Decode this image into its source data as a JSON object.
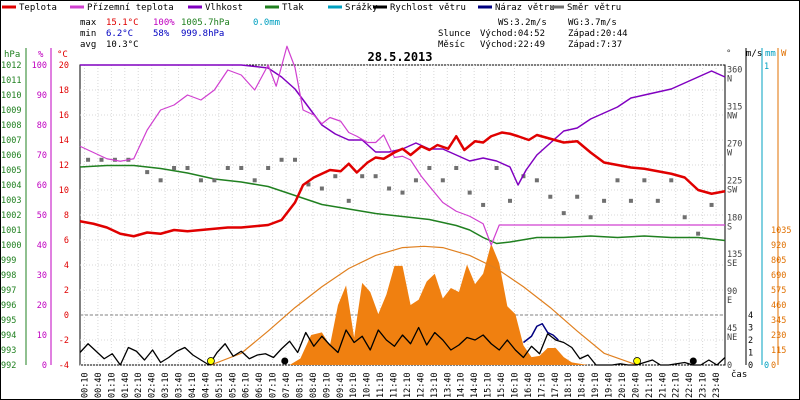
{
  "chart_data": {
    "type": "line",
    "title": "28.5.2013",
    "legend": [
      {
        "label": "Teplota",
        "color": "#e00000"
      },
      {
        "label": "Přízemní teplota",
        "color": "#d040d0"
      },
      {
        "label": "Vlhkost",
        "color": "#8000c0"
      },
      {
        "label": "Tlak",
        "color": "#208020"
      },
      {
        "label": "Srážky",
        "color": "#00a0c0"
      },
      {
        "label": "Rychlost větru",
        "color": "#000000"
      },
      {
        "label": "Náraz větru",
        "color": "#000080"
      },
      {
        "label": "Směr větru",
        "color": "#707070"
      }
    ],
    "stats": {
      "max": {
        "label": "max",
        "temp": "15.1°C",
        "humidity": "100%",
        "pressure": "1005.7hPa",
        "rain": "0.0mm"
      },
      "min": {
        "label": "min",
        "temp": "6.2°C",
        "humidity": "58%",
        "pressure": "999.8hPa"
      },
      "avg": {
        "label": "avg",
        "temp": "10.3°C"
      }
    },
    "wind_info": {
      "ws": "WS:3.2m/s",
      "wg": "WG:3.7m/s"
    },
    "sun": {
      "label": "Slunce",
      "rise": "Východ:04:52",
      "set": "Západ:20:44"
    },
    "moon": {
      "label": "Měsíc",
      "rise": "Východ:22:49",
      "set": "Západ:7:37"
    },
    "axis_units": {
      "pressure": "hPa",
      "humidity": "%",
      "temp": "°C",
      "direction": "°",
      "speed": "m/s",
      "rain": "mm",
      "radiation": "W",
      "time": "čas"
    },
    "pressure_ticks": [
      "992",
      "993",
      "994",
      "995",
      "996",
      "997",
      "998",
      "999",
      "1000",
      "1001",
      "1002",
      "1003",
      "1004",
      "1005",
      "1006",
      "1007",
      "1008",
      "1009",
      "1010",
      "1011",
      "1012"
    ],
    "humidity_ticks": [
      "0",
      "10",
      "20",
      "30",
      "40",
      "50",
      "60",
      "70",
      "80",
      "90",
      "100"
    ],
    "temp_ticks": [
      "-4",
      "-2",
      "0",
      "2",
      "4",
      "6",
      "8",
      "10",
      "12",
      "14",
      "16",
      "18",
      "20"
    ],
    "direction_ticks": [
      {
        "deg": "360",
        "dir": "N",
        "v": 360
      },
      {
        "deg": "315",
        "dir": "NW",
        "v": 315
      },
      {
        "deg": "270",
        "dir": "W",
        "v": 270
      },
      {
        "deg": "225",
        "dir": "SW",
        "v": 225
      },
      {
        "deg": "180",
        "dir": "S",
        "v": 180
      },
      {
        "deg": "135",
        "dir": "SE",
        "v": 135
      },
      {
        "deg": "90",
        "dir": "E",
        "v": 90
      },
      {
        "deg": "45",
        "dir": "NE",
        "v": 45
      },
      {
        "deg": "0",
        "dir": "",
        "v": 0
      }
    ],
    "speed_ticks": [
      "0",
      "1",
      "2",
      "3",
      "4"
    ],
    "rain_ticks": [
      "0",
      "1"
    ],
    "radiation_ticks": [
      "0",
      "115",
      "230",
      "345",
      "460",
      "575",
      "690",
      "805",
      "920",
      "1035"
    ],
    "time_ticks": [
      "00:10",
      "00:40",
      "01:10",
      "01:40",
      "02:10",
      "02:40",
      "03:10",
      "03:40",
      "04:10",
      "04:40",
      "05:10",
      "05:40",
      "06:10",
      "06:40",
      "07:10",
      "07:40",
      "08:10",
      "08:40",
      "09:10",
      "09:40",
      "10:10",
      "10:40",
      "11:10",
      "11:40",
      "12:10",
      "12:40",
      "13:10",
      "13:40",
      "14:10",
      "14:40",
      "15:10",
      "15:40",
      "16:10",
      "16:40",
      "17:10",
      "17:40",
      "18:10",
      "18:40",
      "19:10",
      "19:40",
      "20:10",
      "20:40",
      "21:10",
      "21:40",
      "22:10",
      "22:40",
      "23:10",
      "23:40"
    ],
    "ylim_temp": [
      -4,
      20
    ],
    "ylim_pressure": [
      992,
      1012
    ],
    "ylim_humidity": [
      0,
      100
    ],
    "ylim_speed": [
      0,
      4
    ],
    "ylim_radiation": [
      0,
      1150
    ],
    "xlim_hours": [
      0,
      24
    ],
    "series": {
      "temperature": {
        "x": [
          0,
          0.5,
          1,
          1.5,
          2,
          2.5,
          3,
          3.5,
          4,
          4.5,
          5,
          5.5,
          6,
          6.5,
          7,
          7.5,
          8,
          8.3,
          8.7,
          9,
          9.3,
          9.7,
          10,
          10.3,
          10.7,
          11,
          11.3,
          11.7,
          12,
          12.3,
          12.7,
          13,
          13.3,
          13.7,
          14,
          14.3,
          14.7,
          15,
          15.3,
          15.7,
          16,
          16.3,
          16.7,
          17,
          17.5,
          18,
          18.5,
          19,
          19.5,
          20,
          20.5,
          21,
          21.5,
          22,
          22.5,
          23,
          23.5,
          24
        ],
        "y": [
          7.5,
          7.3,
          7.0,
          6.5,
          6.3,
          6.6,
          6.5,
          6.8,
          6.7,
          6.8,
          6.9,
          7.0,
          7.0,
          7.1,
          7.2,
          7.6,
          9.0,
          10.4,
          11.0,
          11.3,
          11.6,
          11.5,
          12.1,
          11.4,
          12.2,
          12.6,
          12.5,
          13.0,
          13.3,
          12.8,
          13.5,
          13.2,
          13.6,
          13.3,
          14.3,
          13.2,
          13.9,
          13.8,
          14.3,
          14.6,
          14.5,
          14.3,
          14.0,
          14.4,
          14.1,
          13.8,
          13.9,
          13.0,
          12.2,
          12.0,
          11.8,
          11.7,
          11.5,
          11.3,
          11.0,
          10.0,
          9.7,
          9.9
        ]
      },
      "ground_temperature": {
        "x": [
          0,
          0.5,
          1,
          1.5,
          2,
          2.5,
          3,
          3.5,
          4,
          4.5,
          5,
          5.5,
          6,
          6.5,
          7,
          7.3,
          7.7,
          8,
          8.3,
          8.7,
          9,
          9.3,
          9.7,
          10,
          10.3,
          10.7,
          11,
          11.3,
          11.7,
          12,
          12.3,
          12.7,
          13,
          13.5,
          14,
          14.5,
          15,
          15.3,
          15.6,
          24
        ],
        "y": [
          13.5,
          13.0,
          12.5,
          12.3,
          12.5,
          14.8,
          16.4,
          16.8,
          17.6,
          17.2,
          18.0,
          19.6,
          19.2,
          18.0,
          20.0,
          18.3,
          21.5,
          19.8,
          16.4,
          16.0,
          15.3,
          15.8,
          15.5,
          14.6,
          14.3,
          13.8,
          13.8,
          14.4,
          12.6,
          12.7,
          12.4,
          11.1,
          10.3,
          9.0,
          8.3,
          7.9,
          7.3,
          5.6,
          7.2,
          7.2
        ]
      },
      "humidity": {
        "x": [
          0,
          6,
          7,
          7.5,
          8,
          8.5,
          9,
          9.5,
          10,
          10.5,
          11,
          11.5,
          12,
          12.5,
          13,
          13.5,
          14,
          14.5,
          15,
          15.5,
          16,
          16.3,
          16.6,
          17,
          17.5,
          18,
          18.5,
          19,
          19.5,
          20,
          20.5,
          21,
          21.5,
          22,
          22.5,
          23,
          23.5,
          24
        ],
        "y": [
          100,
          100,
          99,
          96,
          92,
          86,
          80,
          77,
          75,
          75,
          71,
          71,
          72,
          74,
          72,
          72,
          70,
          68,
          69,
          68,
          66,
          60,
          65,
          70,
          74,
          78,
          79,
          82,
          84,
          86,
          89,
          90,
          91,
          92,
          94,
          96,
          98,
          96
        ]
      },
      "pressure": {
        "x": [
          0,
          1,
          2,
          3,
          4,
          5,
          6,
          7,
          8,
          9,
          10,
          11,
          12,
          13,
          14,
          14.5,
          15,
          15.5,
          16,
          17,
          18,
          19,
          20,
          21,
          22,
          23,
          24
        ],
        "y": [
          1005.2,
          1005.3,
          1005.3,
          1005.1,
          1004.8,
          1004.4,
          1004.2,
          1003.9,
          1003.3,
          1002.7,
          1002.4,
          1002.1,
          1001.9,
          1001.7,
          1001.3,
          1001.0,
          1000.5,
          1000.1,
          1000.2,
          1000.5,
          1000.5,
          1000.6,
          1000.5,
          1000.6,
          1000.5,
          1000.5,
          1000.3
        ]
      },
      "wind_speed": {
        "x": [
          0,
          0.3,
          0.6,
          0.9,
          1.2,
          1.5,
          1.8,
          2.1,
          2.4,
          2.7,
          3.0,
          3.3,
          3.6,
          3.9,
          4.2,
          4.5,
          4.8,
          5.1,
          5.4,
          5.7,
          6.0,
          6.3,
          6.6,
          6.9,
          7.2,
          7.5,
          7.8,
          8.1,
          8.4,
          8.7,
          9.0,
          9.3,
          9.6,
          9.9,
          10.2,
          10.5,
          10.8,
          11.1,
          11.4,
          11.7,
          12.0,
          12.3,
          12.6,
          12.9,
          13.2,
          13.5,
          13.8,
          14.1,
          14.4,
          14.7,
          15.0,
          15.3,
          15.6,
          15.9,
          16.2,
          16.5,
          16.8,
          17.1,
          17.4,
          17.7,
          18.0,
          18.3,
          18.6,
          18.9,
          19.2,
          19.5,
          19.8,
          20.1,
          20.4,
          20.7,
          21.0,
          21.3,
          21.6,
          21.9,
          22.2,
          22.5,
          22.8,
          23.1,
          23.4,
          23.7,
          24
        ],
        "y": [
          1.0,
          1.7,
          1.1,
          0.5,
          0.9,
          0.0,
          1.4,
          1.1,
          0.4,
          1.2,
          0.2,
          0.6,
          1.1,
          1.4,
          0.8,
          0.4,
          0.0,
          1.0,
          1.7,
          0.7,
          1.1,
          0.5,
          0.8,
          0.9,
          0.6,
          1.3,
          1.9,
          1.0,
          2.6,
          1.5,
          2.3,
          1.6,
          1.0,
          2.8,
          1.8,
          2.3,
          1.2,
          2.8,
          2.0,
          1.5,
          2.4,
          1.7,
          3.0,
          1.6,
          2.6,
          2.0,
          1.2,
          1.6,
          2.2,
          2.0,
          2.4,
          1.7,
          1.2,
          2.0,
          1.2,
          0.6,
          1.5,
          0.9,
          2.5,
          2.0,
          1.8,
          1.4,
          0.5,
          0.8,
          0.0,
          0.0,
          0.0,
          0.1,
          0.0,
          0.0,
          0.2,
          0.4,
          0.0,
          0.0,
          0.1,
          0.2,
          0.0,
          0.0,
          0.4,
          0.0,
          0.6
        ]
      },
      "wind_gust": {
        "x": [
          16.5,
          16.8,
          17.0,
          17.2,
          17.4,
          17.6,
          17.8
        ],
        "y": [
          1.8,
          2.3,
          3.1,
          3.3,
          2.6,
          2.4,
          2.0
        ]
      },
      "wind_direction": {
        "x": [
          0.3,
          0.8,
          1.3,
          1.8,
          2.5,
          3.0,
          3.5,
          4.0,
          4.5,
          5.0,
          5.5,
          6.0,
          6.5,
          7.0,
          7.5,
          8.0,
          8.5,
          9.0,
          9.5,
          10.0,
          10.5,
          11.0,
          11.5,
          12.0,
          12.5,
          13.0,
          13.5,
          14.0,
          14.5,
          15.0,
          15.5,
          16.0,
          16.5,
          17.0,
          17.5,
          18.0,
          18.5,
          19.0,
          19.5,
          20.0,
          20.5,
          21.0,
          21.5,
          22.0,
          22.5,
          23.0,
          23.5
        ],
        "y": [
          250,
          250,
          250,
          250,
          235,
          225,
          240,
          240,
          225,
          225,
          240,
          240,
          225,
          240,
          250,
          250,
          220,
          215,
          230,
          200,
          230,
          230,
          215,
          210,
          225,
          240,
          225,
          240,
          210,
          195,
          240,
          200,
          230,
          225,
          205,
          185,
          205,
          180,
          200,
          225,
          200,
          225,
          200,
          225,
          180,
          160,
          195
        ]
      },
      "solar_radiation": {
        "x": [
          7.8,
          8.2,
          8.6,
          9.0,
          9.3,
          9.6,
          9.9,
          10.2,
          10.5,
          10.8,
          11.1,
          11.4,
          11.7,
          12.0,
          12.3,
          12.6,
          12.9,
          13.2,
          13.5,
          13.8,
          14.1,
          14.4,
          14.7,
          15.0,
          15.3,
          15.6,
          15.9,
          16.2,
          16.5,
          16.8,
          17.1,
          17.4,
          17.7,
          18.0,
          18.3,
          18.6,
          18.9
        ],
        "y": [
          0,
          50,
          230,
          250,
          150,
          460,
          610,
          210,
          630,
          560,
          390,
          540,
          760,
          760,
          460,
          500,
          640,
          700,
          510,
          590,
          560,
          770,
          620,
          700,
          930,
          780,
          450,
          390,
          150,
          60,
          70,
          130,
          130,
          60,
          20,
          10,
          0
        ]
      },
      "solar_max": {
        "x": [
          4.87,
          6,
          7,
          8,
          9,
          10,
          11,
          12,
          12.8,
          13.5,
          14.5,
          15.5,
          16.5,
          17.5,
          18.5,
          19.5,
          20.73
        ],
        "y": [
          0,
          90,
          260,
          440,
          600,
          740,
          840,
          900,
          910,
          900,
          840,
          740,
          600,
          440,
          260,
          90,
          0
        ]
      }
    },
    "markers": {
      "sunrise": {
        "x": 4.87,
        "label": "sunrise-marker"
      },
      "sunset": {
        "x": 20.73,
        "label": "sunset-marker"
      },
      "moonset": {
        "x": 7.62,
        "label": "moonset-marker"
      },
      "moonrise": {
        "x": 22.82,
        "label": "moonrise-marker"
      }
    }
  }
}
